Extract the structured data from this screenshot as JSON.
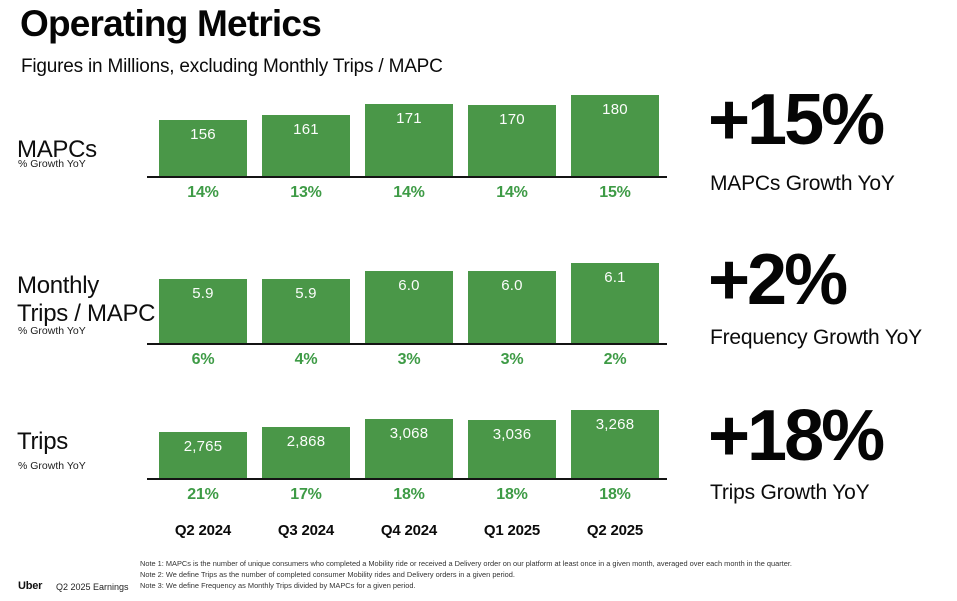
{
  "header": {
    "title": "Operating Metrics",
    "subtitle": "Figures in Millions, excluding Monthly Trips / MAPC"
  },
  "colors": {
    "bar_green": "#4A9748",
    "pct_green": "#3E9B46",
    "text_black": "#0B0B0B"
  },
  "quarters": [
    "Q2 2024",
    "Q3 2024",
    "Q4 2024",
    "Q1 2025",
    "Q2 2025"
  ],
  "chart_data": [
    {
      "type": "bar",
      "name": "MAPCs",
      "sublabel": "% Growth YoY",
      "categories": [
        "Q2 2024",
        "Q3 2024",
        "Q4 2024",
        "Q1 2025",
        "Q2 2025"
      ],
      "values": [
        156,
        161,
        171,
        170,
        180
      ],
      "value_labels": [
        "156",
        "161",
        "171",
        "170",
        "180"
      ],
      "growth_labels": [
        "14%",
        "13%",
        "14%",
        "14%",
        "15%"
      ],
      "callout": {
        "value": "+15%",
        "label": "MAPCs Growth YoY"
      }
    },
    {
      "type": "bar",
      "name": "Monthly\nTrips / MAPC",
      "sublabel": "% Growth YoY",
      "categories": [
        "Q2 2024",
        "Q3 2024",
        "Q4 2024",
        "Q1 2025",
        "Q2 2025"
      ],
      "values": [
        5.9,
        5.9,
        6.0,
        6.0,
        6.1
      ],
      "value_labels": [
        "5.9",
        "5.9",
        "6.0",
        "6.0",
        "6.1"
      ],
      "growth_labels": [
        "6%",
        "4%",
        "3%",
        "3%",
        "2%"
      ],
      "callout": {
        "value": "+2%",
        "label": "Frequency Growth YoY"
      }
    },
    {
      "type": "bar",
      "name": "Trips",
      "sublabel": "% Growth YoY",
      "categories": [
        "Q2 2024",
        "Q3 2024",
        "Q4 2024",
        "Q1 2025",
        "Q2 2025"
      ],
      "values": [
        2765,
        2868,
        3068,
        3036,
        3268
      ],
      "value_labels": [
        "2,765",
        "2,868",
        "3,068",
        "3,036",
        "3,268"
      ],
      "growth_labels": [
        "21%",
        "17%",
        "18%",
        "18%",
        "18%"
      ],
      "callout": {
        "value": "+18%",
        "label": "Trips Growth YoY"
      }
    }
  ],
  "footer": {
    "brand": "Uber",
    "context": "Q2 2025 Earnings",
    "notes": [
      "Note 1: MAPCs is the number of unique consumers who completed a Mobility ride or received a Delivery order on our platform at least once in a given month, averaged over each month in the quarter.",
      "Note 2: We define Trips as the number of completed consumer Mobility rides and Delivery orders in a given period.",
      "Note 3: We define Frequency as Monthly Trips divided by MAPCs for a given period."
    ]
  }
}
